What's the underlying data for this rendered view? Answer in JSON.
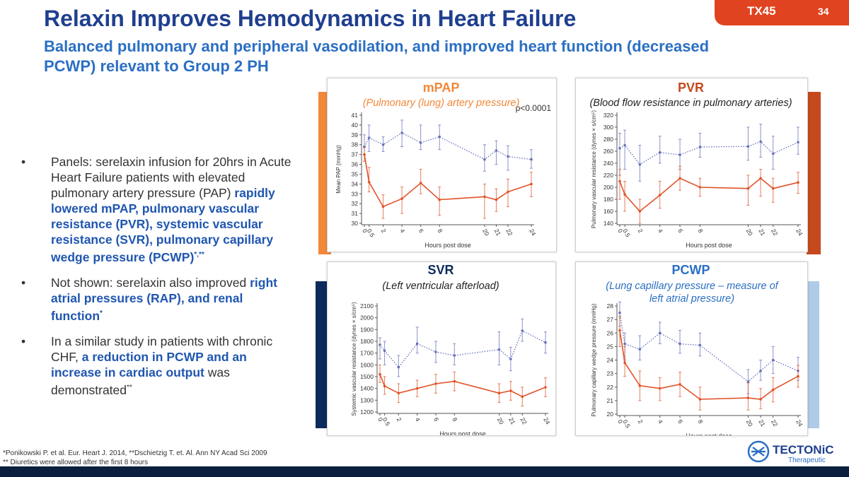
{
  "header": {
    "title": "Relaxin Improves Hemodynamics in Heart Failure",
    "subtitle": "Balanced pulmonary and peripheral vasodilation, and improved heart function (decreased PCWP) relevant to Group 2 PH",
    "tag": "TX45",
    "page_number": "34"
  },
  "colors": {
    "title": "#1f3f8f",
    "subtitle": "#2b6fc3",
    "tag": "#e0431f",
    "relaxin_line": "#e0532a",
    "placebo_line": "#6670b8",
    "mpap": "#f2883a",
    "pvr": "#c4491c",
    "svr": "#0d2a5c",
    "pcwp": "#2b6fc3"
  },
  "bullets": [
    {
      "segments": [
        {
          "t": "Panels: serelaxin infusion for 20hrs in Acute Heart Failure patients with elevated pulmonary artery pressure (PAP) "
        },
        {
          "t": "rapidly lowered mPAP, pulmonary vascular resistance (PVR), systemic vascular resistance (SVR), pulmonary capillary wedge pressure (PCWP)",
          "h": true
        },
        {
          "t": "*,**",
          "sup": true,
          "h": true
        }
      ]
    },
    {
      "segments": [
        {
          "t": "Not shown: serelaxin also improved "
        },
        {
          "t": "right atrial pressures (RAP), and renal function",
          "h": true
        },
        {
          "t": "*",
          "sup": true,
          "h": true
        }
      ]
    },
    {
      "segments": [
        {
          "t": "In a similar study in patients with chronic CHF, "
        },
        {
          "t": "a reduction in PCWP and an increase in cardiac output",
          "h": true
        },
        {
          "t": " was demonstrated"
        },
        {
          "t": "**",
          "sup": true
        }
      ]
    }
  ],
  "footnotes": {
    "line1": "*Ponikowski P. et al. Eur. Heart J. 2014, **Dschietzig T. et. Al. Ann NY Acad Sci 2009",
    "line2": "** Diuretics were allowed after the first 8 hours"
  },
  "logo": {
    "name": "TECTONiC",
    "sub": "Therapeutic",
    "icon": "tectonic-logo-icon"
  },
  "chart_data": [
    {
      "id": "mpap",
      "type": "line",
      "title": "mPAP",
      "subtitle": "(Pulmonary (lung) artery pressure)",
      "annotation": "p<0.0001",
      "xlabel": "Hours post dose",
      "ylabel": "Mean PAP (mmHg)",
      "xticks": [
        "0",
        "0.5",
        "2",
        "4",
        "6",
        "8",
        "20",
        "21",
        "22",
        "24"
      ],
      "yticks": [
        30,
        31,
        32,
        33,
        34,
        35,
        36,
        37,
        38,
        39,
        40,
        41
      ],
      "ylim": [
        30,
        41
      ],
      "series": [
        {
          "color": "#6670b8",
          "style": "dotted",
          "values": [
            37.8,
            38.7,
            38.0,
            39.2,
            38.2,
            38.8,
            36.5,
            37.4,
            36.8,
            36.5
          ],
          "err_low": [
            37.0,
            37.3,
            37.3,
            37.8,
            37.5,
            37.5,
            35.3,
            36.0,
            35.4,
            35.6
          ],
          "err_high": [
            39.0,
            40.0,
            38.8,
            40.5,
            40.0,
            40.0,
            38.0,
            38.4,
            37.9,
            37.5
          ]
        },
        {
          "color": "#e0532a",
          "style": "solid",
          "values": [
            37.0,
            34.2,
            31.7,
            32.5,
            34.1,
            32.4,
            32.7,
            32.4,
            33.2,
            34.0
          ],
          "err_low": [
            36.3,
            33.2,
            30.5,
            31.0,
            33.0,
            30.8,
            30.5,
            31.2,
            31.7,
            32.7
          ],
          "err_high": [
            37.7,
            35.7,
            32.9,
            33.7,
            35.5,
            33.7,
            34.0,
            33.5,
            34.5,
            35.2
          ]
        }
      ]
    },
    {
      "id": "pvr",
      "type": "line",
      "title": "PVR",
      "subtitle": "(Blood flow resistance in pulmonary arteries)",
      "xlabel": "Hours post dose",
      "ylabel": "Pulmonary vascular resistance (dynes × s/cm⁵)",
      "xticks": [
        "0",
        "0.5",
        "2",
        "4",
        "6",
        "8",
        "20",
        "21",
        "22",
        "24"
      ],
      "yticks": [
        140,
        160,
        180,
        200,
        220,
        240,
        260,
        280,
        300,
        320
      ],
      "ylim": [
        140,
        320
      ],
      "series": [
        {
          "color": "#6670b8",
          "style": "dotted",
          "values": [
            265,
            270,
            238,
            258,
            254,
            267,
            268,
            276,
            256,
            275
          ],
          "err_low": [
            220,
            230,
            210,
            240,
            230,
            250,
            245,
            250,
            230,
            255
          ],
          "err_high": [
            290,
            295,
            270,
            285,
            280,
            290,
            300,
            305,
            285,
            300
          ]
        },
        {
          "color": "#e0532a",
          "style": "solid",
          "values": [
            210,
            188,
            160,
            187,
            215,
            200,
            198,
            215,
            198,
            208
          ],
          "err_low": [
            180,
            160,
            140,
            165,
            195,
            185,
            170,
            185,
            175,
            190
          ],
          "err_high": [
            230,
            210,
            180,
            210,
            235,
            215,
            220,
            230,
            215,
            225
          ]
        }
      ]
    },
    {
      "id": "svr",
      "type": "line",
      "title": "SVR",
      "subtitle": "(Left ventricular afterload)",
      "xlabel": "Hours post dose",
      "ylabel": "Systemic vascular resistance (dynes × s/cm⁵)",
      "xticks": [
        "0",
        "0.5",
        "2",
        "4",
        "6",
        "8",
        "20",
        "21",
        "22",
        "24"
      ],
      "yticks": [
        1200,
        1300,
        1400,
        1500,
        1600,
        1700,
        1800,
        1900,
        2000,
        2100
      ],
      "ylim": [
        1200,
        2100
      ],
      "series": [
        {
          "color": "#6670b8",
          "style": "dotted",
          "values": [
            1770,
            1720,
            1580,
            1780,
            1710,
            1680,
            1730,
            1650,
            1890,
            1790
          ],
          "err_low": [
            1650,
            1600,
            1500,
            1700,
            1620,
            1600,
            1600,
            1550,
            1800,
            1700
          ],
          "err_high": [
            1830,
            1800,
            1680,
            1920,
            1800,
            1780,
            1880,
            1750,
            1990,
            1880
          ]
        },
        {
          "color": "#e0532a",
          "style": "solid",
          "values": [
            1520,
            1420,
            1360,
            1400,
            1440,
            1460,
            1360,
            1380,
            1330,
            1410
          ],
          "err_low": [
            1450,
            1350,
            1280,
            1330,
            1360,
            1380,
            1280,
            1300,
            1250,
            1330
          ],
          "err_high": [
            1600,
            1500,
            1440,
            1470,
            1520,
            1540,
            1440,
            1460,
            1410,
            1490
          ]
        }
      ]
    },
    {
      "id": "pcwp",
      "type": "line",
      "title": "PCWP",
      "subtitle": "(Lung capillary pressure – measure of left atrial pressure)",
      "xlabel": "Hours post dose",
      "ylabel": "Pulmonary capillary wedge pressure (mmHg)",
      "xticks": [
        "0",
        "0.5",
        "2",
        "4",
        "6",
        "8",
        "20",
        "21",
        "22",
        "24"
      ],
      "yticks": [
        20,
        21,
        22,
        23,
        24,
        25,
        26,
        27,
        28
      ],
      "ylim": [
        20,
        28
      ],
      "series": [
        {
          "color": "#6670b8",
          "style": "dotted",
          "values": [
            27.5,
            25.2,
            24.8,
            26.0,
            25.2,
            25.1,
            22.4,
            23.2,
            24.0,
            23.2
          ],
          "err_low": [
            26.5,
            24.0,
            24.0,
            25.2,
            24.5,
            24.3,
            21.5,
            22.5,
            23.0,
            22.5
          ],
          "err_high": [
            28.3,
            26.0,
            25.8,
            26.8,
            26.2,
            26.0,
            23.3,
            24.0,
            25.0,
            24.2
          ]
        },
        {
          "color": "#e0532a",
          "style": "solid",
          "values": [
            26.2,
            23.8,
            22.1,
            21.9,
            22.2,
            21.1,
            21.2,
            21.1,
            21.8,
            22.8
          ],
          "err_low": [
            25.0,
            22.8,
            21.0,
            21.0,
            21.3,
            20.3,
            20.3,
            20.4,
            20.9,
            22.0
          ],
          "err_high": [
            27.2,
            25.0,
            23.2,
            22.7,
            23.1,
            22.0,
            22.3,
            21.9,
            22.7,
            23.6
          ]
        }
      ]
    }
  ]
}
